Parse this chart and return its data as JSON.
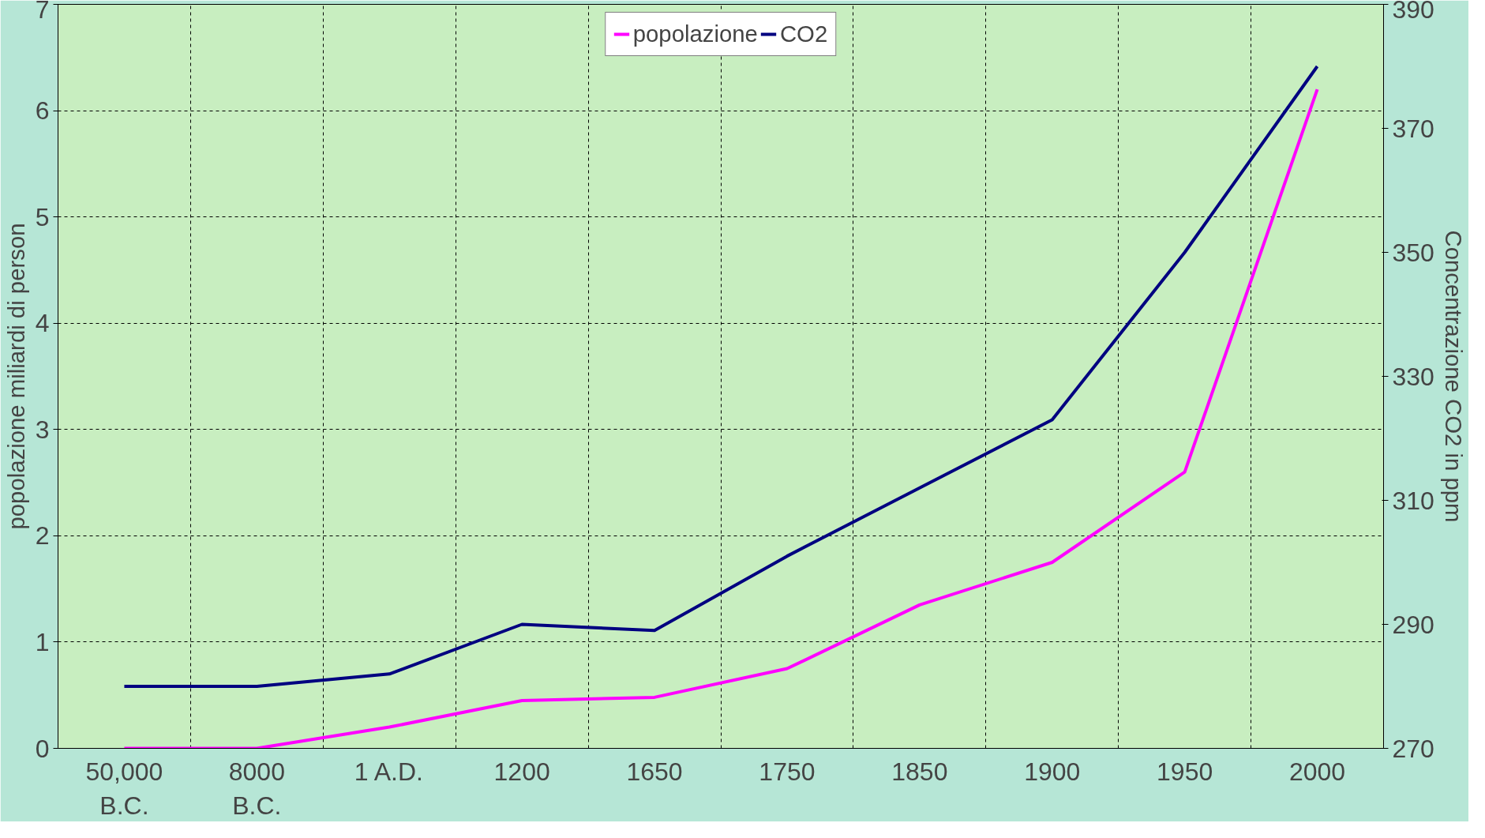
{
  "chart_data": {
    "type": "line",
    "categories": [
      "50,000\nB.C.",
      "8000\nB.C.",
      "1 A.D.",
      "1200",
      "1650",
      "1750",
      "1850",
      "1900",
      "1950",
      "2000"
    ],
    "ylabel": "popolazione miliardi di person",
    "y2label": "Concentrazione CO2 in ppm",
    "ylim": [
      0,
      7
    ],
    "yticks": [
      0,
      1,
      2,
      3,
      4,
      5,
      6,
      7
    ],
    "y2lim": [
      270,
      390
    ],
    "y2ticks": [
      270,
      290,
      310,
      330,
      350,
      370,
      390
    ],
    "series": [
      {
        "name": "popolazione",
        "color": "#ff00ff",
        "values": [
          0,
          0,
          0.2,
          0.45,
          0.48,
          0.75,
          1.35,
          1.75,
          2.6,
          6.2
        ]
      },
      {
        "name": "CO2",
        "color": "#000080",
        "axis": "y2",
        "values": [
          280,
          280,
          282,
          290,
          289,
          301,
          312,
          323,
          350,
          380
        ]
      }
    ],
    "grid": true,
    "legend": "top",
    "line_style": "solid"
  }
}
